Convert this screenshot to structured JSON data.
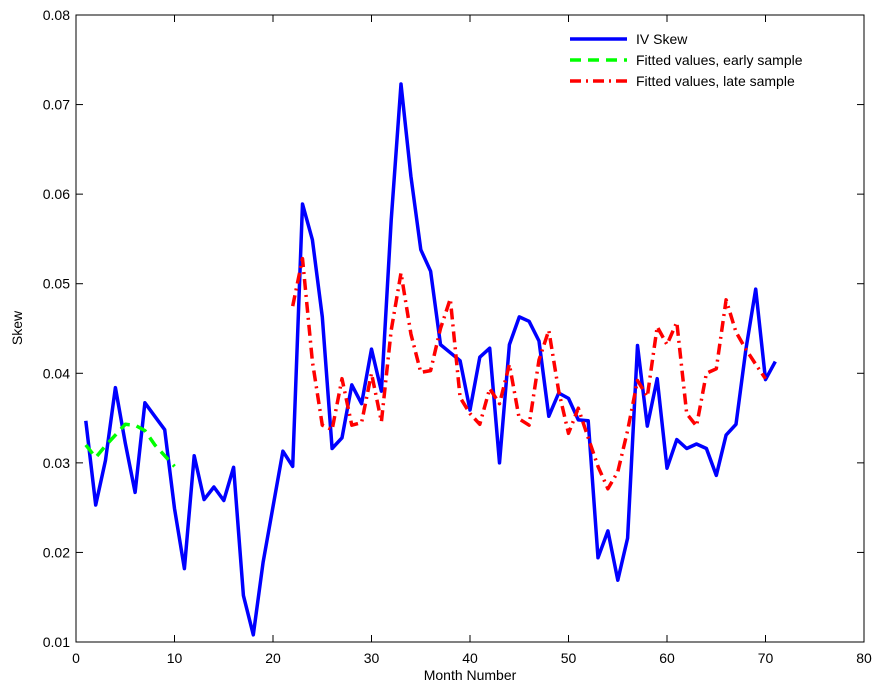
{
  "chart_data": {
    "type": "line",
    "xlabel": "Month Number",
    "ylabel": "Skew",
    "xlim": [
      0,
      80
    ],
    "ylim": [
      0.01,
      0.08
    ],
    "xticks": [
      0,
      10,
      20,
      30,
      40,
      50,
      60,
      70,
      80
    ],
    "yticks": [
      0.01,
      0.02,
      0.03,
      0.04,
      0.05,
      0.06,
      0.07,
      0.08
    ],
    "xtick_labels": [
      "0",
      "10",
      "20",
      "30",
      "40",
      "50",
      "60",
      "70",
      "80"
    ],
    "ytick_labels": [
      "0.01",
      "0.02",
      "0.03",
      "0.04",
      "0.05",
      "0.06",
      "0.07",
      "0.08"
    ],
    "grid": false,
    "legend_position": "top-right",
    "series": [
      {
        "name": "IV Skew",
        "color": "#0000ff",
        "style": "solid",
        "x": [
          1,
          2,
          3,
          4,
          5,
          6,
          7,
          8,
          9,
          10,
          11,
          12,
          13,
          14,
          15,
          16,
          17,
          18,
          19,
          20,
          21,
          22,
          23,
          24,
          25,
          26,
          27,
          28,
          29,
          30,
          31,
          32,
          33,
          34,
          35,
          36,
          37,
          38,
          39,
          40,
          41,
          42,
          43,
          44,
          45,
          46,
          47,
          48,
          49,
          50,
          51,
          52,
          53,
          54,
          55,
          56,
          57,
          58,
          59,
          60,
          61,
          62,
          63,
          64,
          65,
          66,
          67,
          68,
          69,
          70,
          71
        ],
        "y": [
          0.0347,
          0.0253,
          0.0303,
          0.0384,
          0.0322,
          0.0267,
          0.0367,
          0.0352,
          0.0337,
          0.0249,
          0.0182,
          0.0308,
          0.0259,
          0.0273,
          0.0258,
          0.0295,
          0.0152,
          0.0108,
          0.0189,
          0.0251,
          0.0313,
          0.0296,
          0.0589,
          0.0549,
          0.0463,
          0.0316,
          0.0328,
          0.0387,
          0.0366,
          0.0427,
          0.038,
          0.0571,
          0.0723,
          0.062,
          0.0538,
          0.0514,
          0.0432,
          0.0423,
          0.0414,
          0.0359,
          0.0418,
          0.0428,
          0.03,
          0.0432,
          0.0463,
          0.0458,
          0.0436,
          0.0352,
          0.0378,
          0.0372,
          0.0348,
          0.0347,
          0.0194,
          0.0224,
          0.0169,
          0.0216,
          0.0431,
          0.0341,
          0.0394,
          0.0294,
          0.0326,
          0.0316,
          0.0321,
          0.0316,
          0.0286,
          0.0331,
          0.0343,
          0.0426,
          0.0494,
          0.0393,
          0.0413
        ]
      },
      {
        "name": "Fitted values, early sample",
        "color": "#00ff00",
        "style": "dashed",
        "x": [
          1,
          2,
          3,
          4,
          5,
          6,
          7,
          8,
          9,
          10
        ],
        "y": [
          0.032,
          0.0306,
          0.0319,
          0.0331,
          0.0343,
          0.0342,
          0.0336,
          0.032,
          0.0308,
          0.0296
        ]
      },
      {
        "name": "Fitted values, late sample",
        "color": "#ff0000",
        "style": "dashdot",
        "x": [
          22,
          23,
          24,
          25,
          26,
          27,
          28,
          29,
          30,
          31,
          32,
          33,
          34,
          35,
          36,
          37,
          38,
          39,
          40,
          41,
          42,
          43,
          44,
          45,
          46,
          47,
          48,
          49,
          50,
          51,
          52,
          53,
          54,
          55,
          56,
          57,
          58,
          59,
          60,
          61,
          62,
          63,
          64,
          65,
          66,
          67,
          68,
          69,
          70
        ],
        "y": [
          0.0475,
          0.0528,
          0.0413,
          0.0342,
          0.0337,
          0.0394,
          0.0342,
          0.0345,
          0.04,
          0.0346,
          0.0448,
          0.0512,
          0.0444,
          0.0401,
          0.0403,
          0.045,
          0.0483,
          0.0373,
          0.0355,
          0.0343,
          0.0383,
          0.0366,
          0.041,
          0.0349,
          0.0342,
          0.0415,
          0.0448,
          0.038,
          0.0333,
          0.0361,
          0.0328,
          0.0296,
          0.0271,
          0.029,
          0.0336,
          0.0392,
          0.0374,
          0.0452,
          0.0432,
          0.0457,
          0.0355,
          0.0341,
          0.04,
          0.0405,
          0.0482,
          0.0446,
          0.0427,
          0.041,
          0.0394
        ]
      }
    ]
  }
}
